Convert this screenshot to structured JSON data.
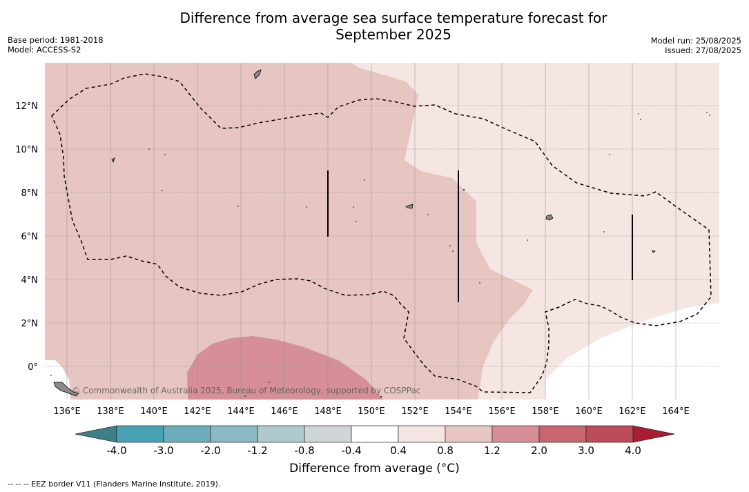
{
  "header": {
    "title_line1": "Difference from average sea surface temperature forecast for",
    "title_line2": "September 2025",
    "base_period": "Base period: 1981-2018",
    "model": "Model: ACCESS-S2",
    "model_run": "Model run: 25/08/2025",
    "issued": "Issued: 27/08/2025"
  },
  "map": {
    "lon_ticks": [
      "136°E",
      "138°E",
      "140°E",
      "142°E",
      "144°E",
      "146°E",
      "148°E",
      "150°E",
      "152°E",
      "154°E",
      "156°E",
      "158°E",
      "160°E",
      "162°E",
      "164°E"
    ],
    "lat_ticks": [
      "12°N",
      "10°N",
      "8°N",
      "6°N",
      "4°N",
      "2°N",
      "0°"
    ],
    "credit": "© Commonwealth of Australia 2025, Bureau of Meteorology, supported by COSPPac"
  },
  "colorbar": {
    "colors": [
      "#3d7f86",
      "#49a2b4",
      "#6cacbc",
      "#8cb8c3",
      "#afc9cc",
      "#d0d5d6",
      "#ffffff",
      "#f5e5e3",
      "#e7c6c1",
      "#d68f97",
      "#c76570",
      "#bd4b59",
      "#a81c34"
    ],
    "tick_labels": [
      "-4.0",
      "-3.0",
      "-2.0",
      "-1.2",
      "-0.8",
      "-0.4",
      "0.4",
      "0.8",
      "1.2",
      "2.0",
      "3.0",
      "4.0"
    ],
    "label": "Difference from average (°C)"
  },
  "footnote": "-- -- -- EEZ border V11 (Flanders Marine Institute, 2019)."
}
